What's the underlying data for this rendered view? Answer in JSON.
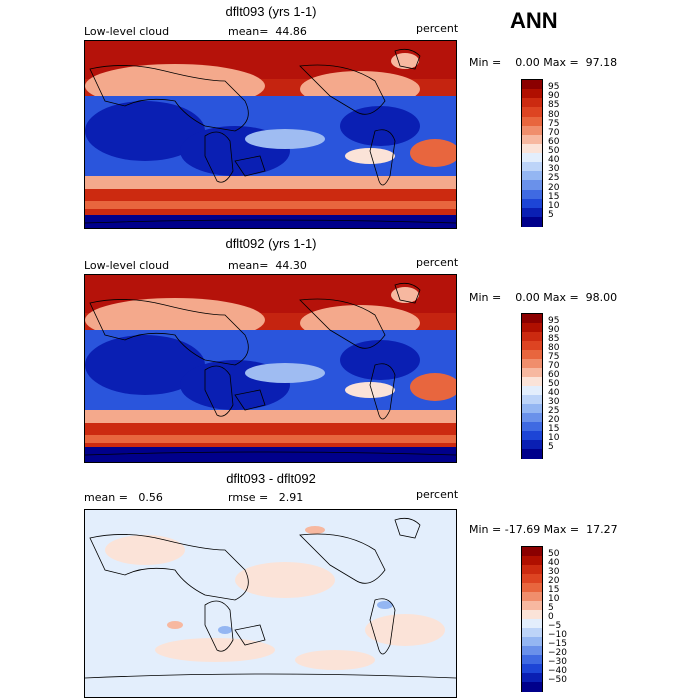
{
  "header": {
    "season": "ANN"
  },
  "panels": [
    {
      "id": "top",
      "title": "dflt093 (yrs 1-1)",
      "variable": "Low-level cloud",
      "stat_text": "mean=  44.86",
      "units": "percent",
      "range_text": "Min =    0.00 Max =  97.18",
      "field": "absolute"
    },
    {
      "id": "middle",
      "title": "dflt092 (yrs 1-1)",
      "variable": "Low-level cloud",
      "stat_text": "mean=  44.30",
      "units": "percent",
      "range_text": "Min =    0.00 Max =  98.00",
      "field": "absolute"
    },
    {
      "id": "bottom",
      "title": "dflt093 - dflt092",
      "variable": "mean =   0.56",
      "stat_text": "rmse =   2.91",
      "units": "percent",
      "range_text": "Min = -17.69 Max =  17.27",
      "field": "difference"
    }
  ],
  "colorbars": {
    "absolute": {
      "labels": [
        "95",
        "90",
        "85",
        "80",
        "75",
        "70",
        "60",
        "50",
        "40",
        "30",
        "25",
        "20",
        "15",
        "10",
        "5"
      ],
      "colors": [
        "#8b0000",
        "#b00f00",
        "#cc2a10",
        "#dd4422",
        "#e8663e",
        "#f08e6c",
        "#f7b8a0",
        "#fbe3d8",
        "#e3eefc",
        "#bdd4f8",
        "#94b6f2",
        "#6a91ea",
        "#3f6ae2",
        "#1d45d6",
        "#0a1fb3",
        "#00008b"
      ]
    },
    "difference": {
      "labels": [
        "50",
        "40",
        "30",
        "20",
        "15",
        "10",
        "5",
        "0",
        "−5",
        "−10",
        "−15",
        "−20",
        "−30",
        "−40",
        "−50"
      ],
      "colors": [
        "#8b0000",
        "#b00f00",
        "#cc2a10",
        "#dd4422",
        "#e8663e",
        "#f08e6c",
        "#f7b8a0",
        "#fbe3d8",
        "#e3eefc",
        "#bdd4f8",
        "#94b6f2",
        "#6a91ea",
        "#3f6ae2",
        "#1d45d6",
        "#0a1fb3",
        "#00008b"
      ]
    }
  }
}
